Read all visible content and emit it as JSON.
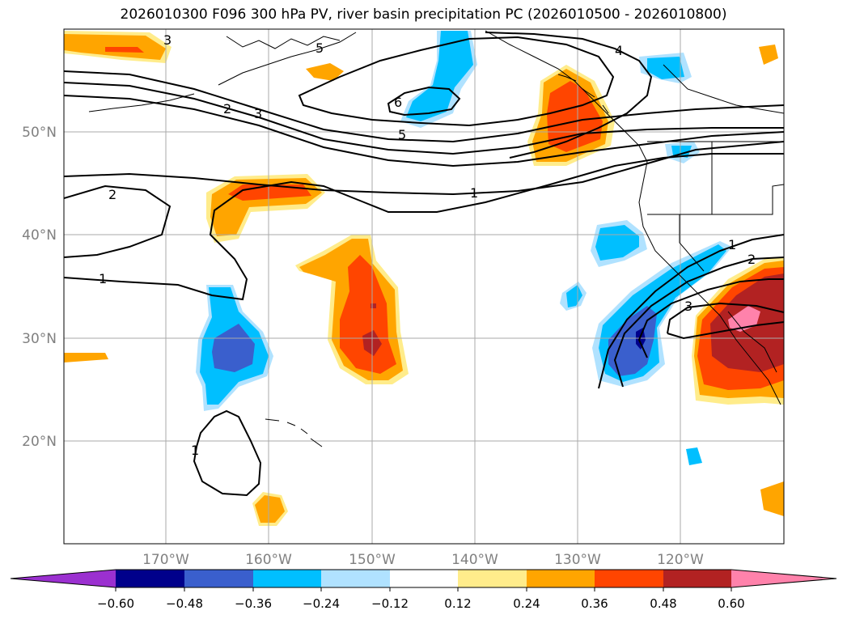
{
  "title": "2026010300 F096 300 hPa PV, river basin precipitation PC (2026010500 - 2026010800)",
  "map": {
    "lon_labels": [
      "170°W",
      "160°W",
      "150°W",
      "140°W",
      "130°W",
      "120°W"
    ],
    "lat_labels": [
      "50°N",
      "40°N",
      "30°N",
      "20°N"
    ],
    "contour_labels": [
      "3",
      "5",
      "2",
      "3",
      "6",
      "5",
      "4",
      "1",
      "2",
      "1",
      "1",
      "2",
      "3",
      "1"
    ]
  },
  "colorbar": {
    "tick_labels": [
      "−0.60",
      "−0.48",
      "−0.36",
      "−0.24",
      "−0.12",
      "0.12",
      "0.24",
      "0.36",
      "0.48",
      "0.60"
    ],
    "colors": [
      "#9b30d0",
      "#00008b",
      "#3a5fcd",
      "#00bfff",
      "#b0e2ff",
      "#ffffff",
      "#ffec8b",
      "#ffa500",
      "#ff4500",
      "#b22222",
      "#ff82ab"
    ]
  },
  "chart_data": {
    "type": "contour-map",
    "title": "2026010300 F096 300 hPa PV, river basin precipitation PC (2026010500 - 2026010800)",
    "lon_range": [
      -180,
      -110
    ],
    "lat_range": [
      10,
      60
    ],
    "x_ticks": [
      "170°W",
      "160°W",
      "150°W",
      "140°W",
      "130°W",
      "120°W"
    ],
    "y_ticks": [
      "50°N",
      "40°N",
      "30°N",
      "20°N"
    ],
    "pv_contour_levels": [
      1,
      2,
      3,
      4,
      5,
      6
    ],
    "colorbar_levels": [
      -0.6,
      -0.48,
      -0.36,
      -0.24,
      -0.12,
      0.12,
      0.24,
      0.36,
      0.48,
      0.6
    ],
    "colorbar_extend": "both"
  }
}
